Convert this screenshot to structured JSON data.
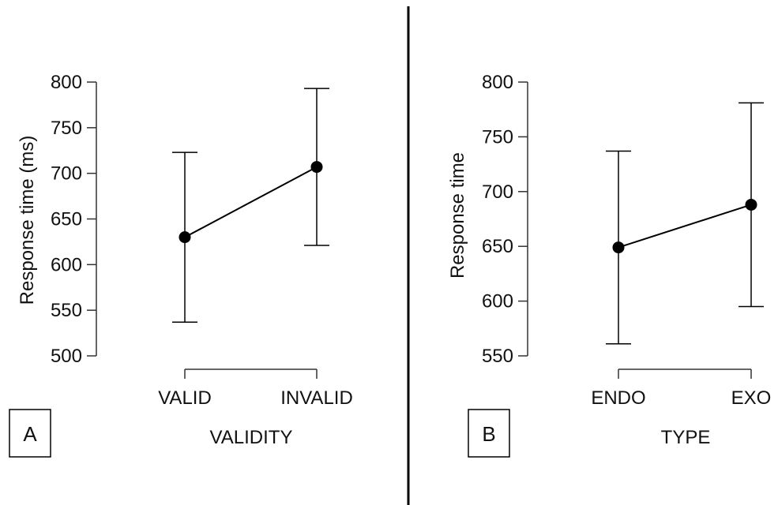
{
  "chart_data": [
    {
      "type": "line",
      "panel_label": "A",
      "xlabel": "VALIDITY",
      "ylabel": "Response time (ms)",
      "categories": [
        "VALID",
        "INVALID"
      ],
      "values": [
        630,
        707
      ],
      "error_low": [
        537,
        621
      ],
      "error_high": [
        723,
        793
      ],
      "ylim": [
        500,
        800
      ],
      "yticks": [
        500,
        550,
        600,
        650,
        700,
        750,
        800
      ],
      "grid": false,
      "legend": "none"
    },
    {
      "type": "line",
      "panel_label": "B",
      "xlabel": "TYPE",
      "ylabel": "Response time",
      "categories": [
        "ENDO",
        "EXO"
      ],
      "values": [
        649,
        688
      ],
      "error_low": [
        561,
        595
      ],
      "error_high": [
        737,
        781
      ],
      "ylim": [
        550,
        800
      ],
      "yticks": [
        550,
        600,
        650,
        700,
        750,
        800
      ],
      "grid": false,
      "legend": "none"
    }
  ],
  "colors": {
    "ink": "#000000",
    "axis": "#333333",
    "background": "#ffffff"
  }
}
